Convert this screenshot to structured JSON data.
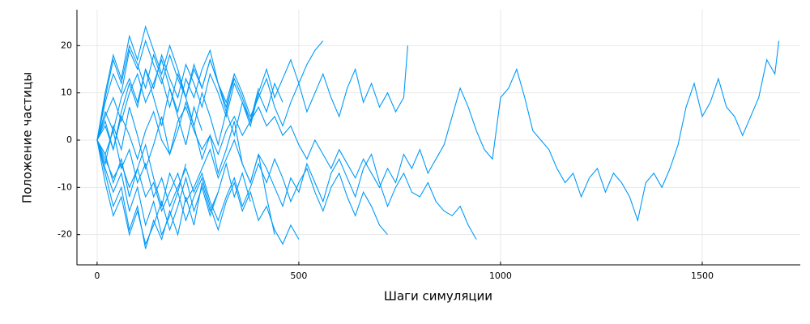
{
  "chart_data": {
    "type": "line",
    "xlabel": "Шаги симуляции",
    "ylabel": "Положение частицы",
    "color": "#009af9",
    "grid": true,
    "xlim": [
      -50,
      1743
    ],
    "ylim": [
      -26.4,
      27.6
    ],
    "xticks": [
      0,
      500,
      1000,
      1500
    ],
    "yticks": [
      -20,
      -10,
      0,
      10,
      20
    ],
    "series": [
      {
        "x": [
          0,
          20,
          40,
          60,
          80,
          100,
          120,
          140,
          160,
          180,
          200,
          220,
          240,
          260,
          280,
          300,
          320,
          340,
          360,
          380,
          400,
          420,
          440,
          460,
          480,
          500,
          520,
          540,
          560,
          580,
          600,
          620,
          640,
          660,
          680,
          700,
          720,
          740,
          760,
          780,
          800,
          820,
          840,
          860,
          880,
          900,
          920,
          940,
          960,
          980,
          1000,
          1020,
          1040,
          1060,
          1080,
          1100,
          1120,
          1140,
          1160,
          1180,
          1200,
          1220,
          1240,
          1260,
          1280,
          1300,
          1320,
          1340,
          1360,
          1380,
          1400,
          1420,
          1440,
          1460,
          1480,
          1500,
          1520,
          1540,
          1560,
          1580,
          1600,
          1620,
          1640,
          1660,
          1680,
          1690
        ],
        "values": [
          0,
          3,
          -2,
          5,
          1,
          -4,
          2,
          6,
          0,
          -3,
          4,
          7,
          2,
          -2,
          1,
          -3,
          2,
          5,
          1,
          4,
          7,
          3,
          5,
          1,
          3,
          -1,
          -4,
          0,
          -3,
          -6,
          -2,
          -5,
          -8,
          -4,
          -7,
          -10,
          -6,
          -9,
          -3,
          -6,
          -2,
          -7,
          -4,
          -1,
          5,
          11,
          7,
          2,
          -2,
          -4,
          9,
          11,
          15,
          9,
          2,
          0,
          -2,
          -6,
          -9,
          -7,
          -12,
          -8,
          -6,
          -11,
          -7,
          -9,
          -12,
          -17,
          -9,
          -7,
          -10,
          -6,
          -1,
          7,
          12,
          5,
          8,
          13,
          7,
          5,
          1,
          5,
          9,
          17,
          14,
          21
        ]
      },
      {
        "x": [
          0,
          20,
          40,
          60,
          80,
          100,
          120,
          140,
          160,
          180,
          200,
          220,
          240,
          260,
          280,
          300,
          320,
          340,
          360,
          380,
          400,
          420,
          440,
          460,
          480,
          500,
          520,
          540,
          560,
          580,
          600,
          620,
          640,
          660,
          680,
          700,
          720,
          740,
          760,
          780,
          800,
          820,
          840,
          860,
          880,
          900,
          920,
          940
        ],
        "values": [
          0,
          -4,
          -8,
          -5,
          -10,
          -6,
          -12,
          -9,
          -15,
          -11,
          -7,
          -13,
          -10,
          -6,
          -2,
          -8,
          -4,
          0,
          -5,
          -9,
          -3,
          -6,
          -10,
          -14,
          -8,
          -11,
          -5,
          -9,
          -13,
          -7,
          -4,
          -8,
          -12,
          -6,
          -3,
          -9,
          -14,
          -10,
          -7,
          -11,
          -12,
          -9,
          -13,
          -15,
          -16,
          -14,
          -18,
          -21
        ]
      },
      {
        "x": [
          0,
          20,
          40,
          60,
          80,
          100,
          120,
          140,
          160,
          180,
          200,
          220,
          240,
          260,
          280,
          300,
          320,
          340,
          360,
          380,
          400,
          420,
          440,
          460,
          480,
          500,
          520,
          540,
          560,
          580,
          600,
          620,
          640,
          660,
          680,
          700,
          720,
          740,
          760,
          770
        ],
        "values": [
          0,
          5,
          9,
          4,
          10,
          14,
          8,
          12,
          17,
          11,
          6,
          13,
          9,
          15,
          19,
          12,
          8,
          14,
          10,
          5,
          9,
          13,
          7,
          3,
          8,
          12,
          6,
          10,
          14,
          9,
          5,
          11,
          15,
          8,
          12,
          7,
          10,
          6,
          9,
          20
        ]
      },
      {
        "x": [
          0,
          20,
          40,
          60,
          80,
          100,
          120,
          140,
          160,
          180,
          200,
          220,
          240,
          260,
          280,
          300,
          320,
          340,
          360,
          380,
          400,
          420,
          440,
          460,
          480,
          500,
          520,
          540,
          560,
          580,
          600,
          620,
          640,
          660,
          680,
          700,
          720
        ],
        "values": [
          0,
          -3,
          2,
          -6,
          -2,
          -9,
          -5,
          -12,
          -8,
          -14,
          -10,
          -6,
          -11,
          -7,
          -13,
          -17,
          -12,
          -8,
          -14,
          -10,
          -5,
          -9,
          -4,
          -8,
          -13,
          -9,
          -6,
          -11,
          -15,
          -10,
          -7,
          -12,
          -16,
          -11,
          -14,
          -18,
          -20
        ]
      },
      {
        "x": [
          0,
          20,
          40,
          60,
          80,
          100,
          120,
          140,
          160,
          180,
          200,
          220,
          240,
          260,
          280,
          300,
          320,
          340,
          360,
          380,
          400,
          420,
          440,
          460,
          480,
          500,
          520,
          540,
          560
        ],
        "values": [
          0,
          6,
          2,
          9,
          13,
          8,
          15,
          11,
          18,
          13,
          9,
          16,
          12,
          7,
          14,
          10,
          5,
          12,
          8,
          3,
          10,
          15,
          9,
          13,
          17,
          12,
          16,
          19,
          21
        ]
      },
      {
        "x": [
          0,
          20,
          40,
          60,
          80,
          100,
          120,
          140,
          160,
          180,
          200,
          220,
          240,
          260,
          280,
          300,
          320,
          340,
          360,
          380,
          400,
          420,
          440,
          460,
          480,
          500
        ],
        "values": [
          0,
          -6,
          -11,
          -7,
          -15,
          -10,
          -18,
          -13,
          -20,
          -16,
          -11,
          -17,
          -12,
          -8,
          -14,
          -19,
          -13,
          -9,
          -15,
          -11,
          -17,
          -14,
          -19,
          -22,
          -18,
          -21
        ]
      },
      {
        "x": [
          0,
          20,
          40,
          60,
          80,
          100,
          120,
          140,
          160,
          180,
          200,
          220,
          240,
          260,
          280,
          300,
          320,
          340,
          360,
          380,
          400,
          420,
          440,
          460
        ],
        "values": [
          0,
          8,
          14,
          10,
          19,
          15,
          21,
          16,
          12,
          18,
          13,
          9,
          15,
          11,
          17,
          12,
          7,
          13,
          9,
          4,
          10,
          6,
          12,
          8
        ]
      },
      {
        "x": [
          0,
          20,
          40,
          60,
          80,
          100,
          120,
          140,
          160,
          180,
          200,
          220,
          240,
          260,
          280,
          300,
          320,
          340,
          360,
          380,
          400,
          420,
          440
        ],
        "values": [
          0,
          -5,
          3,
          -2,
          7,
          1,
          -6,
          -1,
          5,
          -3,
          2,
          8,
          3,
          -4,
          1,
          -7,
          -2,
          4,
          -5,
          -9,
          -3,
          -12,
          -20
        ]
      },
      {
        "x": [
          0,
          20,
          40,
          60,
          80,
          100,
          120,
          140,
          160,
          180,
          200,
          220,
          240,
          260,
          280,
          300,
          320,
          340,
          360,
          380,
          400
        ],
        "values": [
          0,
          9,
          17,
          12,
          20,
          16,
          11,
          18,
          13,
          7,
          14,
          9,
          3,
          10,
          5,
          -1,
          6,
          1,
          8,
          4,
          11
        ]
      },
      {
        "x": [
          0,
          20,
          40,
          60,
          80,
          100,
          120,
          140,
          160,
          180,
          200,
          220,
          240,
          260,
          280,
          300,
          320,
          340,
          360,
          380
        ],
        "values": [
          0,
          -9,
          -16,
          -12,
          -20,
          -15,
          -22,
          -18,
          -13,
          -19,
          -14,
          -8,
          -15,
          -10,
          -16,
          -11,
          -5,
          -12,
          -7,
          -13
        ]
      },
      {
        "x": [
          0,
          20,
          40,
          60,
          80,
          100,
          120,
          140,
          160,
          180,
          200,
          220,
          240,
          260,
          280,
          300,
          320,
          340
        ],
        "values": [
          0,
          10,
          18,
          13,
          22,
          17,
          24,
          19,
          14,
          20,
          15,
          9,
          16,
          11,
          17,
          12,
          6,
          14
        ]
      },
      {
        "x": [
          0,
          20,
          40,
          60,
          80,
          100,
          120,
          140,
          160,
          180,
          200,
          220,
          240,
          260,
          280,
          300
        ],
        "values": [
          0,
          -7,
          -14,
          -10,
          -19,
          -14,
          -23,
          -17,
          -21,
          -15,
          -20,
          -12,
          -18,
          -9,
          -15,
          -11
        ]
      },
      {
        "x": [
          0,
          20,
          40,
          60,
          80,
          100,
          120,
          140,
          160,
          180,
          200,
          220,
          240,
          260
        ],
        "values": [
          0,
          4,
          -2,
          6,
          12,
          7,
          15,
          9,
          3,
          11,
          5,
          -1,
          7,
          2
        ]
      },
      {
        "x": [
          0,
          20,
          40,
          60,
          80,
          100,
          120,
          140,
          160,
          180,
          200,
          220
        ],
        "values": [
          0,
          -3,
          -9,
          -4,
          -12,
          -6,
          -1,
          -8,
          -14,
          -7,
          -11,
          -5
        ]
      }
    ]
  }
}
